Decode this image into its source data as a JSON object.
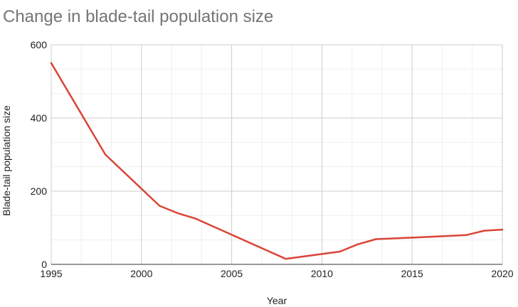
{
  "chart_data": {
    "type": "line",
    "title": "Change in blade-tail population size",
    "xlabel": "Year",
    "ylabel": "Blade-tail population size",
    "xlim": [
      1995,
      2020
    ],
    "ylim": [
      0,
      600
    ],
    "x_ticks": [
      1995,
      2000,
      2005,
      2010,
      2015,
      2020
    ],
    "y_ticks": [
      0,
      200,
      400,
      600
    ],
    "x_minor_step": 1.6667,
    "y_minor_step": 66.667,
    "grid": true,
    "legend": "none",
    "series": [
      {
        "name": "Blade-tail population size",
        "color": "#db4437",
        "x": [
          1995,
          1998,
          2001,
          2002,
          2003,
          2008,
          2011,
          2012,
          2013,
          2015,
          2018,
          2019,
          2020
        ],
        "values": [
          550,
          300,
          160,
          140,
          125,
          15,
          35,
          55,
          69,
          73,
          80,
          92,
          95
        ]
      }
    ]
  }
}
